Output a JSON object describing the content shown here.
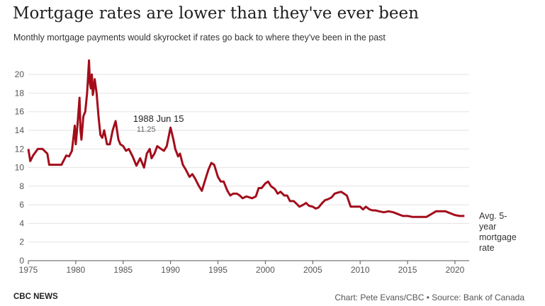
{
  "header": {
    "title": "Mortgage rates are lower than they've ever been",
    "subtitle": "Monthly mortgage payments would skyrocket if rates go back to where they've been in the past"
  },
  "footer": {
    "brand": "CBC NEWS",
    "credit": "Chart: Pete Evans/CBC • Source: Bank of Canada"
  },
  "colors": {
    "series": "#a30d1b",
    "grid": "#e2e2e2"
  },
  "chart_data": {
    "type": "line",
    "title": "",
    "xlabel": "",
    "ylabel": "",
    "xlim": [
      1975,
      2021.5
    ],
    "ylim": [
      0,
      21
    ],
    "x_ticks": [
      1975,
      1980,
      1985,
      1990,
      1995,
      2000,
      2005,
      2010,
      2015,
      2020
    ],
    "y_ticks": [
      0,
      2,
      4,
      6,
      8,
      10,
      12,
      14,
      16,
      18,
      20
    ],
    "grid": true,
    "annotation": {
      "label": "1988 Jun 15",
      "sublabel": "11.25",
      "x": 1988.45,
      "y": 11.25
    },
    "series": [
      {
        "name": "Avg. 5-year mortgage rate",
        "label_lines": [
          "Avg. 5-",
          "year",
          "mortgage",
          "rate"
        ],
        "x": [
          1975.0,
          1975.2,
          1975.5,
          1976.0,
          1976.5,
          1977.0,
          1977.2,
          1977.5,
          1978.0,
          1978.5,
          1979.0,
          1979.3,
          1979.6,
          1979.9,
          1980.0,
          1980.2,
          1980.4,
          1980.5,
          1980.6,
          1980.8,
          1981.0,
          1981.2,
          1981.4,
          1981.5,
          1981.6,
          1981.7,
          1981.8,
          1981.9,
          1982.0,
          1982.2,
          1982.4,
          1982.6,
          1982.8,
          1983.0,
          1983.3,
          1983.6,
          1983.9,
          1984.2,
          1984.5,
          1984.7,
          1985.0,
          1985.3,
          1985.6,
          1986.0,
          1986.4,
          1986.8,
          1987.0,
          1987.2,
          1987.5,
          1987.8,
          1988.0,
          1988.3,
          1988.6,
          1989.0,
          1989.3,
          1989.6,
          1990.0,
          1990.3,
          1990.5,
          1990.8,
          1991.0,
          1991.3,
          1991.6,
          1992.0,
          1992.3,
          1992.6,
          1993.0,
          1993.3,
          1993.6,
          1994.0,
          1994.3,
          1994.6,
          1995.0,
          1995.3,
          1995.6,
          1996.0,
          1996.3,
          1996.6,
          1997.0,
          1997.3,
          1997.6,
          1998.0,
          1998.3,
          1998.6,
          1999.0,
          1999.3,
          1999.6,
          2000.0,
          2000.3,
          2000.6,
          2001.0,
          2001.3,
          2001.6,
          2002.0,
          2002.3,
          2002.6,
          2003.0,
          2003.3,
          2003.6,
          2004.0,
          2004.3,
          2004.6,
          2005.0,
          2005.3,
          2005.6,
          2006.0,
          2006.3,
          2006.6,
          2007.0,
          2007.3,
          2007.6,
          2008.0,
          2008.3,
          2008.6,
          2009.0,
          2009.3,
          2009.6,
          2010.0,
          2010.3,
          2010.6,
          2011.0,
          2011.3,
          2011.6,
          2012.0,
          2012.5,
          2013.0,
          2013.5,
          2014.0,
          2014.5,
          2015.0,
          2015.5,
          2016.0,
          2016.5,
          2017.0,
          2017.5,
          2018.0,
          2018.5,
          2019.0,
          2019.5,
          2020.0,
          2020.5,
          2021.0
        ],
        "values": [
          12.0,
          10.7,
          11.3,
          12.0,
          12.0,
          11.5,
          10.3,
          10.3,
          10.3,
          10.3,
          11.3,
          11.2,
          11.8,
          14.5,
          12.5,
          14.8,
          17.5,
          14.0,
          13.0,
          15.5,
          16.0,
          18.0,
          21.5,
          19.0,
          18.5,
          20.0,
          17.8,
          18.5,
          19.5,
          18.0,
          15.5,
          13.5,
          13.2,
          14.0,
          12.5,
          12.5,
          14.0,
          15.0,
          13.0,
          12.5,
          12.3,
          11.8,
          12.0,
          11.2,
          10.2,
          11.0,
          10.5,
          10.0,
          11.5,
          12.0,
          11.0,
          11.5,
          12.3,
          12.0,
          11.8,
          12.3,
          14.3,
          13.0,
          12.0,
          11.2,
          11.5,
          10.3,
          9.8,
          9.0,
          9.3,
          8.8,
          8.0,
          7.5,
          8.5,
          9.8,
          10.5,
          10.3,
          9.0,
          8.5,
          8.5,
          7.5,
          7.0,
          7.2,
          7.2,
          7.0,
          6.7,
          6.9,
          6.8,
          6.7,
          6.9,
          7.8,
          7.8,
          8.3,
          8.5,
          8.0,
          7.7,
          7.2,
          7.4,
          7.0,
          7.0,
          6.4,
          6.4,
          6.1,
          5.8,
          6.0,
          6.2,
          5.9,
          5.8,
          5.6,
          5.7,
          6.2,
          6.5,
          6.6,
          6.8,
          7.2,
          7.3,
          7.4,
          7.2,
          7.0,
          5.8,
          5.8,
          5.8,
          5.8,
          5.5,
          5.8,
          5.5,
          5.4,
          5.4,
          5.3,
          5.2,
          5.3,
          5.2,
          5.0,
          4.8,
          4.8,
          4.7,
          4.7,
          4.7,
          4.7,
          5.0,
          5.3,
          5.3,
          5.3,
          5.1,
          4.9,
          4.8,
          4.8
        ]
      }
    ]
  }
}
